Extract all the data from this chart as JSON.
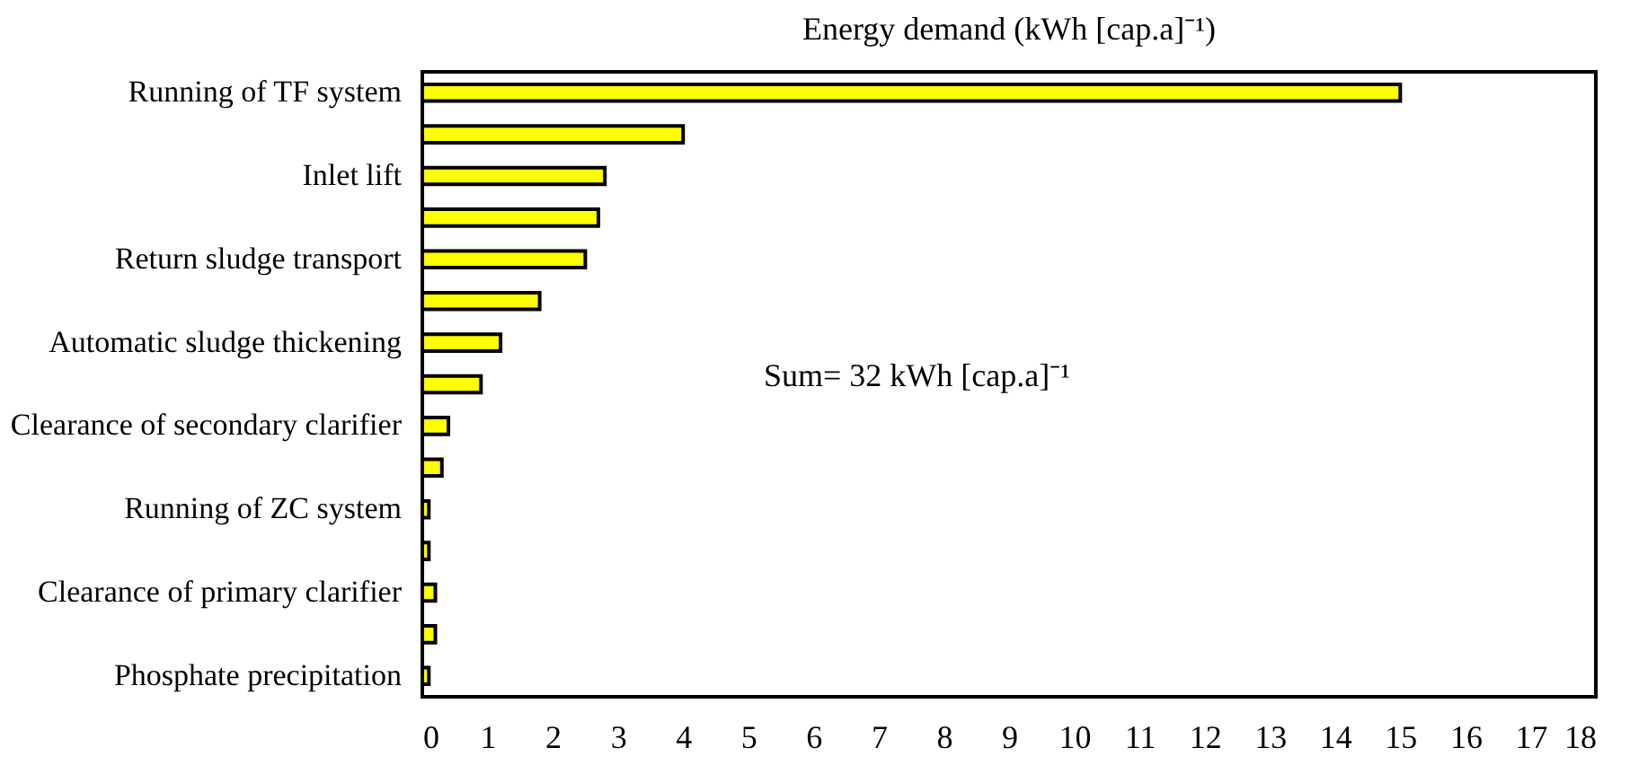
{
  "chart_data": {
    "type": "bar",
    "orientation": "horizontal",
    "title": "Energy demand (kWh [cap.a]⁻¹)",
    "categories": [
      "Running of TF system",
      null,
      "Inlet lift",
      null,
      "Return sludge transport",
      null,
      "Automatic sludge thickening",
      null,
      "Clearance of secondary clarifier",
      null,
      "Running of ZC system",
      null,
      "Clearance of primary clarifier",
      null,
      "Phosphate precipitation"
    ],
    "values": [
      15,
      4.0,
      2.8,
      2.7,
      2.5,
      1.8,
      1.2,
      0.9,
      0.4,
      0.3,
      0.1,
      0.1,
      0.2,
      0.2,
      0.1
    ],
    "color": "#ffff00",
    "xlim": [
      0,
      18
    ],
    "xticks": [
      0,
      1,
      2,
      3,
      4,
      5,
      6,
      7,
      8,
      9,
      10,
      11,
      12,
      13,
      14,
      15,
      16,
      17,
      18
    ],
    "grid": false,
    "annotations": [
      "Sum= 32 kWh [cap.a]⁻¹"
    ]
  }
}
